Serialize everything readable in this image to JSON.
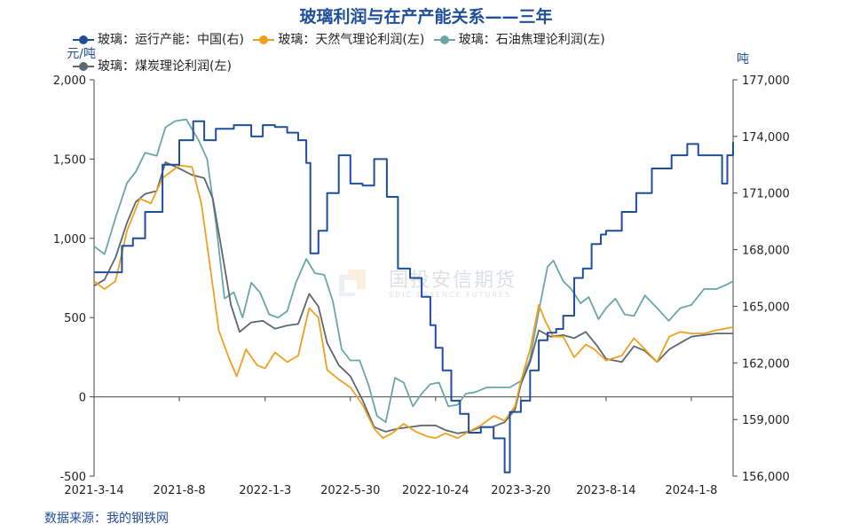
{
  "title": "玻璃利润与在产产能关系——三年",
  "units": {
    "left": "元/吨",
    "right": "吨"
  },
  "source": "数据来源：我的钢铁网",
  "watermark": {
    "cn": "国投安信期货",
    "en": "SDIC ESSENCE FUTURES"
  },
  "colors": {
    "capacity": "#1f4e9c",
    "gas": "#f0a020",
    "petcoke": "#6aa6a8",
    "coal": "#5e6670",
    "title": "#1f4e9c"
  },
  "chart_data": {
    "type": "line",
    "title": "玻璃利润与在产产能关系——三年",
    "x_ticks": [
      "2021-3-14",
      "2021-8-8",
      "2022-1-3",
      "2022-5-30",
      "2022-10-24",
      "2023-3-20",
      "2023-8-14",
      "2024-1-8"
    ],
    "x_range": [
      "2021-03-14",
      "2024-03-20"
    ],
    "y_left": {
      "label": "元/吨",
      "range": [
        -500,
        2000
      ],
      "ticks": [
        "-500",
        "0",
        "500",
        "1,000",
        "1,500",
        "2,000"
      ]
    },
    "y_right": {
      "label": "吨",
      "range": [
        156000,
        177000
      ],
      "ticks": [
        "156,000",
        "159,000",
        "162,000",
        "165,000",
        "168,000",
        "171,000",
        "174,000",
        "177,000"
      ]
    },
    "legend_position": "top",
    "series": [
      {
        "name": "玻璃：运行产能：中国(右)",
        "axis": "right",
        "color": "#1f4e9c",
        "points": [
          [
            "2021-03-14",
            166800
          ],
          [
            "2021-04-20",
            166800
          ],
          [
            "2021-05-01",
            168200
          ],
          [
            "2021-05-20",
            168600
          ],
          [
            "2021-06-10",
            170000
          ],
          [
            "2021-07-10",
            172500
          ],
          [
            "2021-08-08",
            173800
          ],
          [
            "2021-09-01",
            174800
          ],
          [
            "2021-09-20",
            173800
          ],
          [
            "2021-10-10",
            174400
          ],
          [
            "2021-11-10",
            174600
          ],
          [
            "2021-12-10",
            174000
          ],
          [
            "2021-12-30",
            174600
          ],
          [
            "2022-01-20",
            174500
          ],
          [
            "2022-02-10",
            174200
          ],
          [
            "2022-03-01",
            173800
          ],
          [
            "2022-03-15",
            172600
          ],
          [
            "2022-03-22",
            167800
          ],
          [
            "2022-04-05",
            169000
          ],
          [
            "2022-04-20",
            171000
          ],
          [
            "2022-05-10",
            173000
          ],
          [
            "2022-05-30",
            171500
          ],
          [
            "2022-06-20",
            171400
          ],
          [
            "2022-07-10",
            172800
          ],
          [
            "2022-08-01",
            170800
          ],
          [
            "2022-08-20",
            167000
          ],
          [
            "2022-09-10",
            166500
          ],
          [
            "2022-09-30",
            165500
          ],
          [
            "2022-10-15",
            164000
          ],
          [
            "2022-10-24",
            162800
          ],
          [
            "2022-11-05",
            161600
          ],
          [
            "2022-11-20",
            160000
          ],
          [
            "2022-12-05",
            159300
          ],
          [
            "2022-12-20",
            158300
          ],
          [
            "2023-01-10",
            158600
          ],
          [
            "2023-02-01",
            158000
          ],
          [
            "2023-02-20",
            156200
          ],
          [
            "2023-03-01",
            159400
          ],
          [
            "2023-03-20",
            160000
          ],
          [
            "2023-04-05",
            161600
          ],
          [
            "2023-04-20",
            163200
          ],
          [
            "2023-05-05",
            163600
          ],
          [
            "2023-05-20",
            163800
          ],
          [
            "2023-06-01",
            164500
          ],
          [
            "2023-06-20",
            166500
          ],
          [
            "2023-07-05",
            167000
          ],
          [
            "2023-07-20",
            168300
          ],
          [
            "2023-08-05",
            168800
          ],
          [
            "2023-08-14",
            169000
          ],
          [
            "2023-09-10",
            170000
          ],
          [
            "2023-10-05",
            171000
          ],
          [
            "2023-11-01",
            172300
          ],
          [
            "2023-12-05",
            173000
          ],
          [
            "2024-01-01",
            173600
          ],
          [
            "2024-01-20",
            173000
          ],
          [
            "2024-02-15",
            173000
          ],
          [
            "2024-03-01",
            171500
          ],
          [
            "2024-03-10",
            173000
          ],
          [
            "2024-03-20",
            173700
          ]
        ]
      },
      {
        "name": "玻璃：天然气理论利润(左)",
        "axis": "left",
        "color": "#f0a020",
        "points": [
          [
            "2021-03-14",
            730
          ],
          [
            "2021-04-01",
            680
          ],
          [
            "2021-04-20",
            730
          ],
          [
            "2021-05-10",
            1050
          ],
          [
            "2021-06-01",
            1250
          ],
          [
            "2021-06-20",
            1220
          ],
          [
            "2021-07-10",
            1380
          ],
          [
            "2021-08-08",
            1460
          ],
          [
            "2021-08-30",
            1450
          ],
          [
            "2021-09-15",
            1220
          ],
          [
            "2021-10-01",
            800
          ],
          [
            "2021-10-15",
            420
          ],
          [
            "2021-11-01",
            250
          ],
          [
            "2021-11-15",
            130
          ],
          [
            "2021-12-01",
            300
          ],
          [
            "2021-12-20",
            200
          ],
          [
            "2022-01-03",
            180
          ],
          [
            "2022-01-20",
            280
          ],
          [
            "2022-02-10",
            220
          ],
          [
            "2022-03-01",
            260
          ],
          [
            "2022-03-20",
            560
          ],
          [
            "2022-04-05",
            500
          ],
          [
            "2022-04-20",
            170
          ],
          [
            "2022-05-10",
            110
          ],
          [
            "2022-05-30",
            60
          ],
          [
            "2022-06-20",
            -50
          ],
          [
            "2022-07-10",
            -200
          ],
          [
            "2022-07-25",
            -260
          ],
          [
            "2022-08-10",
            -230
          ],
          [
            "2022-08-30",
            -170
          ],
          [
            "2022-09-20",
            -220
          ],
          [
            "2022-10-10",
            -250
          ],
          [
            "2022-10-24",
            -260
          ],
          [
            "2022-11-10",
            -230
          ],
          [
            "2022-12-01",
            -260
          ],
          [
            "2022-12-20",
            -220
          ],
          [
            "2023-01-10",
            -180
          ],
          [
            "2023-02-01",
            -120
          ],
          [
            "2023-02-20",
            -150
          ],
          [
            "2023-03-10",
            -60
          ],
          [
            "2023-03-20",
            100
          ],
          [
            "2023-04-05",
            300
          ],
          [
            "2023-04-20",
            580
          ],
          [
            "2023-05-01",
            480
          ],
          [
            "2023-05-15",
            380
          ],
          [
            "2023-06-01",
            380
          ],
          [
            "2023-06-20",
            250
          ],
          [
            "2023-07-10",
            330
          ],
          [
            "2023-07-25",
            300
          ],
          [
            "2023-08-14",
            230
          ],
          [
            "2023-09-10",
            260
          ],
          [
            "2023-10-01",
            370
          ],
          [
            "2023-10-20",
            300
          ],
          [
            "2023-11-10",
            220
          ],
          [
            "2023-12-01",
            380
          ],
          [
            "2023-12-20",
            410
          ],
          [
            "2024-01-08",
            400
          ],
          [
            "2024-01-30",
            400
          ],
          [
            "2024-02-20",
            420
          ],
          [
            "2024-03-20",
            440
          ]
        ]
      },
      {
        "name": "玻璃：石油焦理论利润(左)",
        "axis": "left",
        "color": "#6aa6a8",
        "points": [
          [
            "2021-03-14",
            950
          ],
          [
            "2021-04-01",
            900
          ],
          [
            "2021-04-20",
            1130
          ],
          [
            "2021-05-10",
            1350
          ],
          [
            "2021-05-25",
            1420
          ],
          [
            "2021-06-10",
            1540
          ],
          [
            "2021-06-30",
            1520
          ],
          [
            "2021-07-15",
            1700
          ],
          [
            "2021-08-01",
            1740
          ],
          [
            "2021-08-20",
            1750
          ],
          [
            "2021-09-10",
            1620
          ],
          [
            "2021-09-25",
            1500
          ],
          [
            "2021-10-10",
            1100
          ],
          [
            "2021-10-25",
            620
          ],
          [
            "2021-11-10",
            660
          ],
          [
            "2021-11-25",
            500
          ],
          [
            "2021-12-10",
            720
          ],
          [
            "2021-12-25",
            660
          ],
          [
            "2022-01-10",
            520
          ],
          [
            "2022-01-25",
            500
          ],
          [
            "2022-02-10",
            540
          ],
          [
            "2022-02-25",
            720
          ],
          [
            "2022-03-15",
            870
          ],
          [
            "2022-03-30",
            780
          ],
          [
            "2022-04-15",
            770
          ],
          [
            "2022-04-30",
            600
          ],
          [
            "2022-05-15",
            300
          ],
          [
            "2022-05-30",
            230
          ],
          [
            "2022-06-15",
            230
          ],
          [
            "2022-06-30",
            80
          ],
          [
            "2022-07-15",
            -120
          ],
          [
            "2022-07-30",
            -160
          ],
          [
            "2022-08-15",
            120
          ],
          [
            "2022-08-30",
            90
          ],
          [
            "2022-09-15",
            -60
          ],
          [
            "2022-09-30",
            20
          ],
          [
            "2022-10-15",
            80
          ],
          [
            "2022-10-30",
            90
          ],
          [
            "2022-11-15",
            -60
          ],
          [
            "2022-12-01",
            -50
          ],
          [
            "2022-12-15",
            20
          ],
          [
            "2023-01-01",
            30
          ],
          [
            "2023-01-20",
            60
          ],
          [
            "2023-02-10",
            60
          ],
          [
            "2023-03-01",
            60
          ],
          [
            "2023-03-20",
            100
          ],
          [
            "2023-04-05",
            240
          ],
          [
            "2023-04-20",
            540
          ],
          [
            "2023-05-05",
            820
          ],
          [
            "2023-05-15",
            860
          ],
          [
            "2023-06-01",
            730
          ],
          [
            "2023-06-15",
            680
          ],
          [
            "2023-07-01",
            590
          ],
          [
            "2023-07-15",
            630
          ],
          [
            "2023-08-01",
            490
          ],
          [
            "2023-08-14",
            560
          ],
          [
            "2023-08-30",
            620
          ],
          [
            "2023-09-15",
            520
          ],
          [
            "2023-10-01",
            510
          ],
          [
            "2023-10-20",
            640
          ],
          [
            "2023-11-10",
            560
          ],
          [
            "2023-11-30",
            480
          ],
          [
            "2023-12-20",
            560
          ],
          [
            "2024-01-08",
            580
          ],
          [
            "2024-01-30",
            680
          ],
          [
            "2024-02-20",
            680
          ],
          [
            "2024-03-10",
            710
          ],
          [
            "2024-03-20",
            730
          ]
        ]
      },
      {
        "name": "玻璃：煤炭理论利润(左)",
        "axis": "left",
        "color": "#5e6670",
        "points": [
          [
            "2021-03-14",
            700
          ],
          [
            "2021-04-01",
            740
          ],
          [
            "2021-04-20",
            880
          ],
          [
            "2021-05-10",
            1100
          ],
          [
            "2021-05-25",
            1230
          ],
          [
            "2021-06-10",
            1280
          ],
          [
            "2021-06-30",
            1300
          ],
          [
            "2021-07-15",
            1480
          ],
          [
            "2021-08-08",
            1440
          ],
          [
            "2021-08-30",
            1400
          ],
          [
            "2021-09-20",
            1380
          ],
          [
            "2021-10-05",
            1250
          ],
          [
            "2021-10-20",
            930
          ],
          [
            "2021-11-05",
            580
          ],
          [
            "2021-11-20",
            410
          ],
          [
            "2021-12-10",
            470
          ],
          [
            "2021-12-30",
            480
          ],
          [
            "2022-01-20",
            430
          ],
          [
            "2022-02-10",
            450
          ],
          [
            "2022-03-01",
            460
          ],
          [
            "2022-03-20",
            650
          ],
          [
            "2022-04-05",
            570
          ],
          [
            "2022-04-20",
            340
          ],
          [
            "2022-05-10",
            200
          ],
          [
            "2022-05-30",
            130
          ],
          [
            "2022-06-20",
            -20
          ],
          [
            "2022-07-10",
            -190
          ],
          [
            "2022-07-30",
            -220
          ],
          [
            "2022-08-20",
            -200
          ],
          [
            "2022-09-10",
            -190
          ],
          [
            "2022-09-30",
            -180
          ],
          [
            "2022-10-24",
            -180
          ],
          [
            "2022-11-10",
            -210
          ],
          [
            "2022-12-01",
            -230
          ],
          [
            "2022-12-20",
            -220
          ],
          [
            "2023-01-10",
            -190
          ],
          [
            "2023-01-30",
            -190
          ],
          [
            "2023-02-20",
            -160
          ],
          [
            "2023-03-10",
            -80
          ],
          [
            "2023-03-20",
            80
          ],
          [
            "2023-04-05",
            220
          ],
          [
            "2023-04-20",
            420
          ],
          [
            "2023-05-10",
            380
          ],
          [
            "2023-06-01",
            390
          ],
          [
            "2023-06-20",
            370
          ],
          [
            "2023-07-10",
            410
          ],
          [
            "2023-07-30",
            320
          ],
          [
            "2023-08-14",
            240
          ],
          [
            "2023-09-10",
            220
          ],
          [
            "2023-10-01",
            320
          ],
          [
            "2023-10-20",
            290
          ],
          [
            "2023-11-10",
            220
          ],
          [
            "2023-12-01",
            300
          ],
          [
            "2023-12-20",
            340
          ],
          [
            "2024-01-08",
            380
          ],
          [
            "2024-01-30",
            390
          ],
          [
            "2024-02-20",
            400
          ],
          [
            "2024-03-20",
            400
          ]
        ]
      }
    ]
  }
}
